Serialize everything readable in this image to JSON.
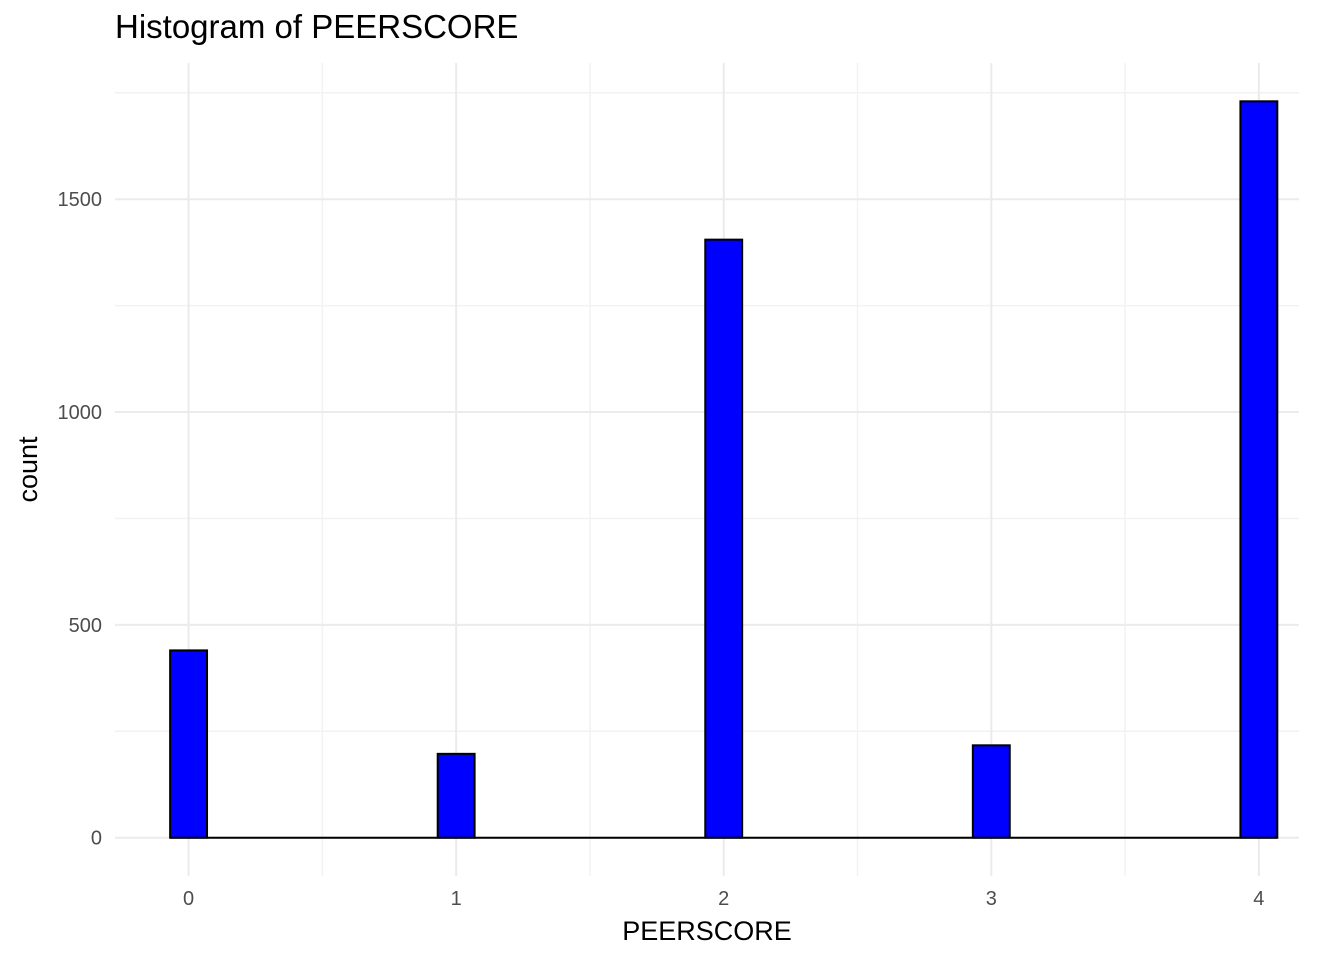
{
  "chart_data": {
    "type": "bar",
    "title": "Histogram of PEERSCORE",
    "xlabel": "PEERSCORE",
    "ylabel": "count",
    "x": [
      0,
      1,
      2,
      3,
      4
    ],
    "values": [
      440,
      197,
      1405,
      217,
      1730
    ],
    "bin_width": 0.1379,
    "xlim": [
      -0.275,
      4.15
    ],
    "ylim": [
      -90,
      1820
    ],
    "x_ticks": [
      0,
      1,
      2,
      3,
      4
    ],
    "y_ticks": [
      0,
      500,
      1000,
      1500
    ],
    "grid": true,
    "legend": "none"
  },
  "colors": {
    "bar_fill": "#0000FF",
    "bar_outline": "#000000",
    "grid_major": "#EBEBEB",
    "grid_minor": "#F2F2F2",
    "background": "#FFFFFF"
  }
}
